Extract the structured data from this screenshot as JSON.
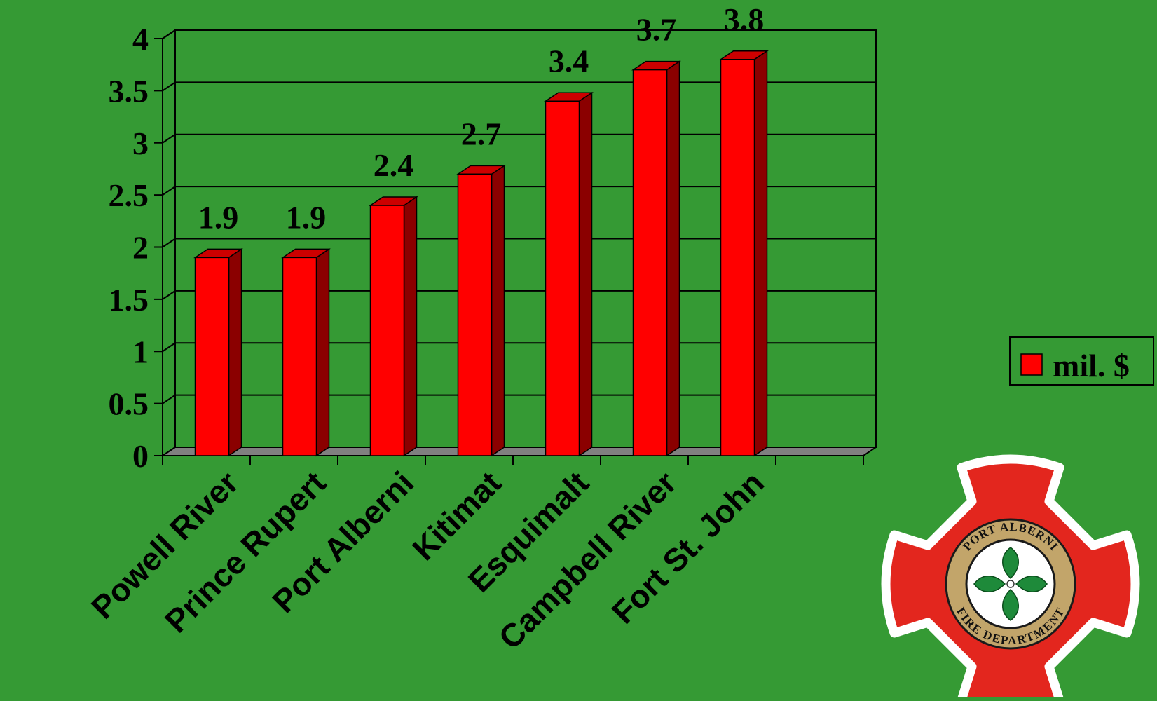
{
  "chart_data": {
    "type": "bar",
    "categories": [
      "Powell River",
      "Prince Rupert",
      "Port Alberni",
      "Kitimat",
      "Esquimalt",
      "Campbell River",
      "Fort St. John"
    ],
    "series": [
      {
        "name": "mil. $",
        "values": [
          1.9,
          1.9,
          2.4,
          2.7,
          3.4,
          3.7,
          3.8
        ]
      }
    ],
    "data_labels": [
      "1.9",
      "1.9",
      "2.4",
      "2.7",
      "3.4",
      "3.7",
      "3.8"
    ],
    "y_ticks": [
      "0",
      "0.5",
      "1",
      "1.5",
      "2",
      "2.5",
      "3",
      "3.5",
      "4"
    ],
    "ylim": [
      0,
      4
    ],
    "title": "",
    "xlabel": "",
    "ylabel": "",
    "grid": true,
    "legend_position": "right",
    "colors": {
      "bar_front": "#ff0000",
      "bar_side": "#8b0000",
      "bar_top": "#cc0000",
      "floor": "#808080",
      "background": "#359a34"
    }
  },
  "logo": {
    "top_text": "PORT ALBERNI",
    "bottom_text": "FIRE DEPARTMENT",
    "icon": "maltese-cross-fire-badge"
  }
}
